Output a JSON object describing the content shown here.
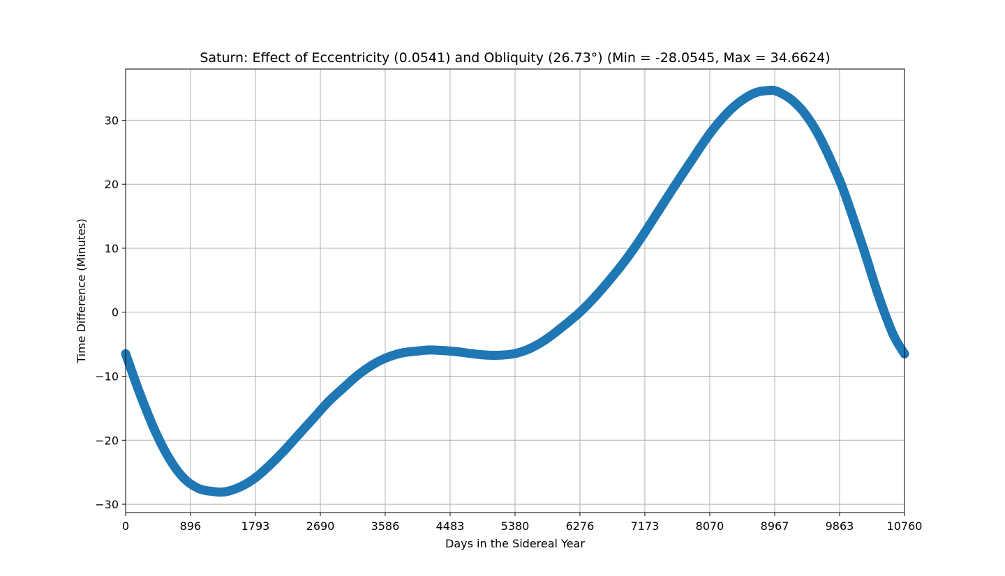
{
  "chart_data": {
    "type": "scatter",
    "title": "Saturn: Effect of Eccentricity (0.0541) and Obliquity (26.73°) (Min = -28.0545, Max = 34.6624)",
    "xlabel": "Days in the Sidereal Year",
    "ylabel": "Time Difference (Minutes)",
    "xlim": [
      0,
      10760
    ],
    "ylim": [
      -31.3,
      38
    ],
    "xticks": [
      0,
      896,
      1793,
      2690,
      3586,
      4483,
      5380,
      6276,
      7173,
      8070,
      8967,
      9863,
      10760
    ],
    "xtick_labels": [
      "0",
      "896",
      "1793",
      "2690",
      "3586",
      "4483",
      "5380",
      "6276",
      "7173",
      "8070",
      "8967",
      "9863",
      "10760"
    ],
    "yticks": [
      -30,
      -20,
      -10,
      0,
      10,
      20,
      30
    ],
    "ytick_labels": [
      "−30",
      "−20",
      "−10",
      "0",
      "10",
      "20",
      "30"
    ],
    "grid": true,
    "series_color": "#1f77b4",
    "series": [
      {
        "name": "Time Difference",
        "x": [
          0,
          200,
          400,
          600,
          800,
          1000,
          1200,
          1380,
          1600,
          1800,
          2000,
          2200,
          2400,
          2600,
          2800,
          3000,
          3200,
          3400,
          3586,
          3800,
          4000,
          4200,
          4400,
          4600,
          4800,
          5000,
          5200,
          5400,
          5600,
          5800,
          6000,
          6276,
          6500,
          6800,
          7000,
          7173,
          7400,
          7600,
          7800,
          8070,
          8300,
          8500,
          8700,
          8880,
          9000,
          9200,
          9400,
          9600,
          9863,
          10000,
          10200,
          10400,
          10600,
          10760
        ],
        "y": [
          -6.5,
          -12.8,
          -18.4,
          -22.8,
          -25.9,
          -27.5,
          -28.0,
          -28.05,
          -27.2,
          -25.8,
          -23.8,
          -21.5,
          -19.0,
          -16.5,
          -14.0,
          -11.9,
          -9.9,
          -8.3,
          -7.2,
          -6.4,
          -6.1,
          -5.9,
          -6.0,
          -6.2,
          -6.5,
          -6.7,
          -6.7,
          -6.4,
          -5.6,
          -4.3,
          -2.6,
          0.0,
          2.6,
          6.6,
          9.6,
          12.5,
          16.5,
          20.0,
          23.4,
          27.9,
          31.0,
          33.0,
          34.3,
          34.66,
          34.5,
          33.2,
          30.8,
          27.1,
          20.6,
          16.4,
          9.7,
          2.6,
          -3.4,
          -6.5
        ]
      }
    ]
  }
}
